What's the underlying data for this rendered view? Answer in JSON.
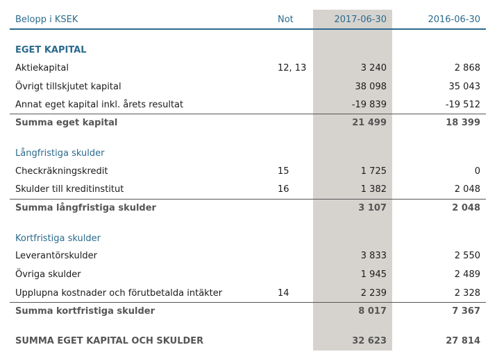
{
  "header": {
    "label": "Belopp i KSEK",
    "note": "Not",
    "col_2017": "2017-06-30",
    "col_2016": "2016-06-30"
  },
  "sections": {
    "eget_kapital": {
      "title": "EGET KAPITAL",
      "rows": [
        {
          "label": "Aktiekapital",
          "note": "12, 13",
          "v2017": "3 240",
          "v2016": "2 868"
        },
        {
          "label": "Övrigt tillskjutet kapital",
          "note": "",
          "v2017": "38 098",
          "v2016": "35 043"
        },
        {
          "label": "Annat eget kapital inkl. årets resultat",
          "note": "",
          "v2017": "-19 839",
          "v2016": "-19 512"
        }
      ],
      "sum": {
        "label": "Summa eget kapital",
        "v2017": "21 499",
        "v2016": "18 399"
      }
    },
    "langfristiga": {
      "title": "Långfristiga skulder",
      "rows": [
        {
          "label": "Checkräkningskredit",
          "note": "15",
          "v2017": "1 725",
          "v2016": "0"
        },
        {
          "label": "Skulder till kreditinstitut",
          "note": "16",
          "v2017": "1 382",
          "v2016": "2 048"
        }
      ],
      "sum": {
        "label": "Summa långfristiga skulder",
        "v2017": "3 107",
        "v2016": "2 048"
      }
    },
    "kortfristiga": {
      "title": "Kortfristiga skulder",
      "rows": [
        {
          "label": "Leverantörskulder",
          "note": "",
          "v2017": "3 833",
          "v2016": "2 550"
        },
        {
          "label": "Övriga skulder",
          "note": "",
          "v2017": "1 945",
          "v2016": "2 489"
        },
        {
          "label": "Upplupna kostnader och förutbetalda intäkter",
          "note": "14",
          "v2017": "2 239",
          "v2016": "2 328"
        }
      ],
      "sum": {
        "label": "Summa kortfristiga skulder",
        "v2017": "8 017",
        "v2016": "7 367"
      }
    }
  },
  "total": {
    "label": "SUMMA EGET KAPITAL OCH SKULDER",
    "v2017": "32 623",
    "v2016": "27 814"
  }
}
